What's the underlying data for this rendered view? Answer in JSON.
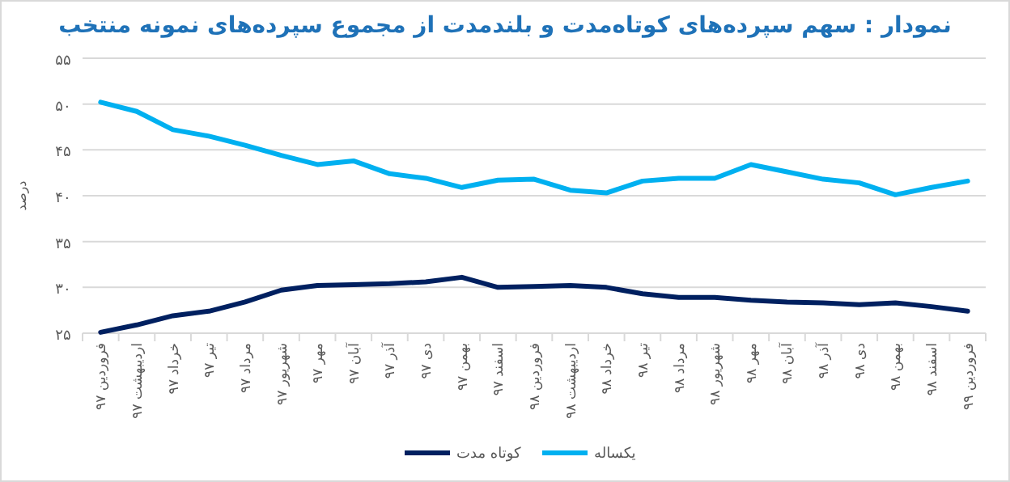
{
  "chart_data": {
    "type": "line",
    "title": "نمودار : سهم سپرده‌های کوتاه‌مدت و بلندمدت از مجموع سپرده‌های نمونه منتخب",
    "ylabel": "درصد",
    "categories": [
      "فروردین ۹۷",
      "اردیبهشت ۹۷",
      "خرداد ۹۷",
      "تیر ۹۷",
      "مرداد ۹۷",
      "شهریور ۹۷",
      "مهر ۹۷",
      "آبان ۹۷",
      "آذر ۹۷",
      "دی ۹۷",
      "بهمن ۹۷",
      "اسفند ۹۷",
      "فروردین ۹۸",
      "اردیبهشت ۹۸",
      "خرداد ۹۸",
      "تیر ۹۸",
      "مرداد ۹۸",
      "شهریور ۹۸",
      "مهر ۹۸",
      "آبان ۹۸",
      "آذر ۹۸",
      "دی ۹۸",
      "بهمن ۹۸",
      "اسفند ۹۸",
      "فروردین ۹۹"
    ],
    "series": [
      {
        "name": "کوتاه مدت",
        "color": "#002060",
        "values": [
          25.1,
          25.9,
          26.9,
          27.4,
          28.4,
          29.7,
          30.2,
          30.3,
          30.4,
          30.6,
          31.1,
          30.0,
          30.1,
          30.2,
          30.0,
          29.3,
          28.9,
          28.9,
          28.6,
          28.4,
          28.3,
          28.1,
          28.3,
          27.9,
          27.4
        ]
      },
      {
        "name": "یکساله",
        "color": "#00b0f0",
        "values": [
          50.2,
          49.2,
          47.2,
          46.5,
          45.5,
          44.4,
          43.4,
          43.8,
          42.4,
          41.9,
          40.9,
          41.7,
          41.8,
          40.6,
          40.3,
          41.6,
          41.9,
          41.9,
          43.4,
          42.6,
          41.8,
          41.4,
          40.1,
          40.9,
          41.6
        ]
      }
    ],
    "ylim": [
      25,
      55
    ],
    "yticks": [
      {
        "value": 25,
        "label": "۲۵"
      },
      {
        "value": 30,
        "label": "۳۰"
      },
      {
        "value": 35,
        "label": "۳۵"
      },
      {
        "value": 40,
        "label": "۴۰"
      },
      {
        "value": 45,
        "label": "۴۵"
      },
      {
        "value": 50,
        "label": "۵۰"
      },
      {
        "value": 55,
        "label": "۵۵"
      }
    ],
    "grid": "y",
    "legend": "bottom",
    "marker": "none",
    "line_style": "solid"
  }
}
